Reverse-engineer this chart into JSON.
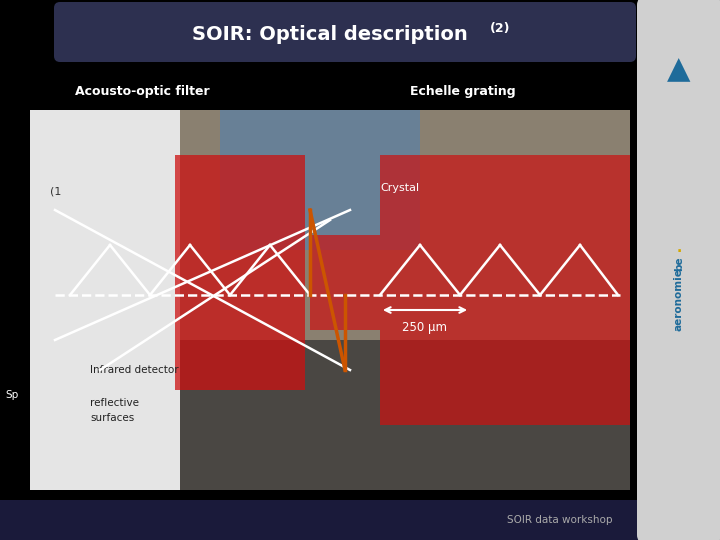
{
  "title": "SOIR: Optical description",
  "title_superscript": "(2)",
  "bg_color": "#000000",
  "title_bar_color": "#2d3050",
  "title_text_color": "#ffffff",
  "label_acousto": "Acousto-optic filter",
  "label_echelle": "Echelle grating",
  "label_crystal": "Crystal",
  "label_250": "250 µm",
  "label_infrared": "Infrared detector",
  "label_spatial": "Sp",
  "label_reflective": "reflective\nsurfaces",
  "label_one": "(1",
  "footer_text": "SOIR data workshop",
  "footer_bg": "#1a1a3a",
  "sidebar_color": "#d0d0d0",
  "white_line_color": "#ffffff",
  "orange_line_color": "#cc5500",
  "text_color_white": "#ffffff",
  "aeronomie_text_color": "#1a5276",
  "photo_bg": "#9a9090",
  "photo_white_area": "#e8e8e8",
  "red_color": "#cc1111"
}
